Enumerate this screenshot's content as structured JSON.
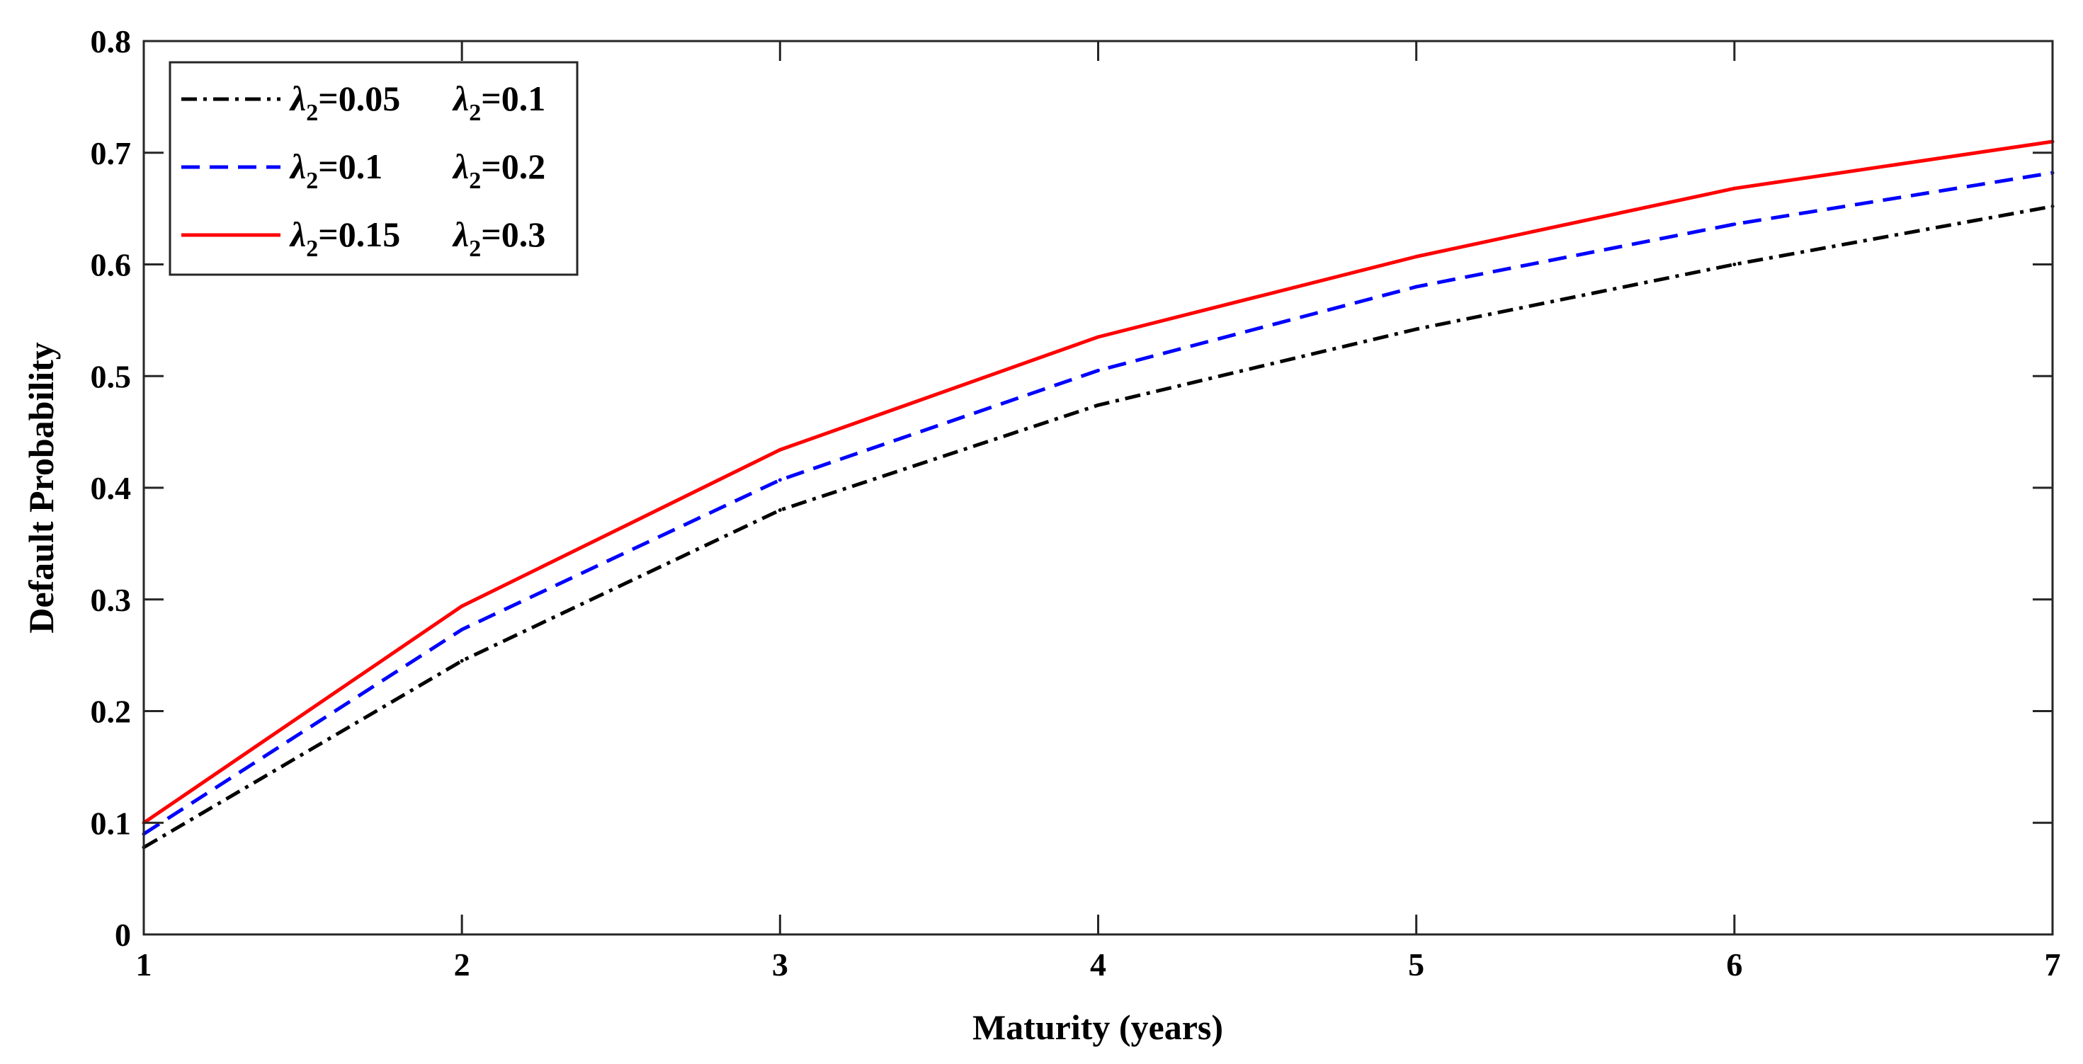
{
  "chart_data": {
    "type": "line",
    "title": "",
    "xlabel": "Maturity (years)",
    "ylabel": "Default Probability",
    "xlim": [
      1,
      7
    ],
    "ylim": [
      0,
      0.8
    ],
    "x_ticks": [
      "1",
      "2",
      "3",
      "4",
      "5",
      "6",
      "7"
    ],
    "y_ticks": [
      "0",
      "0.1",
      "0.2",
      "0.3",
      "0.4",
      "0.5",
      "0.6",
      "0.7",
      "0.8"
    ],
    "grid": false,
    "legend_position": "top-left",
    "x": [
      1,
      2,
      3,
      4,
      5,
      6,
      7
    ],
    "series": [
      {
        "name": "λ2=0.05  λ2=0.1",
        "label_parts": [
          "0.05",
          "0.1"
        ],
        "color": "#000000",
        "style": "dash-dot",
        "values": [
          0.078,
          0.245,
          0.38,
          0.474,
          0.542,
          0.6,
          0.652
        ]
      },
      {
        "name": "λ2=0.1  λ2=0.2",
        "label_parts": [
          "0.1",
          "0.2"
        ],
        "color": "#0000ff",
        "style": "dashed",
        "values": [
          0.09,
          0.273,
          0.407,
          0.505,
          0.58,
          0.636,
          0.682
        ]
      },
      {
        "name": "λ2=0.15  λ2=0.3",
        "label_parts": [
          "0.15",
          "0.3"
        ],
        "color": "#ff0000",
        "style": "solid",
        "values": [
          0.1,
          0.294,
          0.434,
          0.535,
          0.607,
          0.668,
          0.71
        ]
      }
    ]
  }
}
